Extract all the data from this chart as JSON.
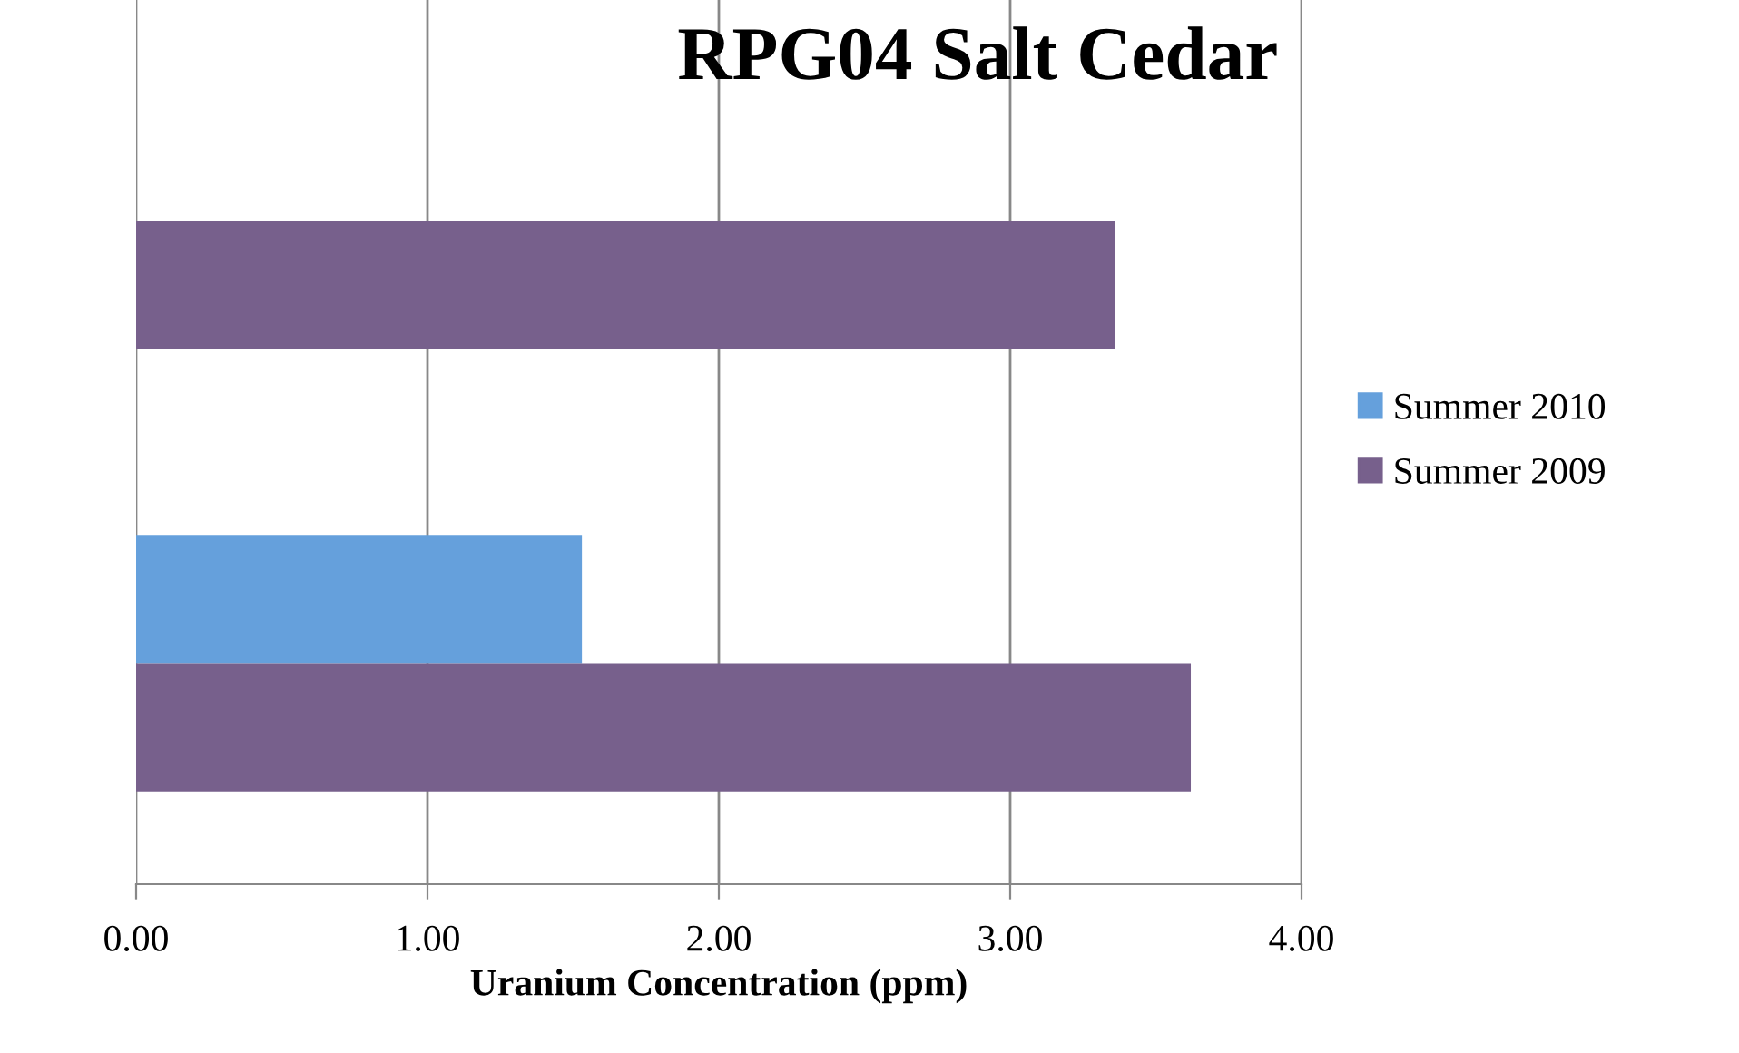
{
  "chart_data": {
    "type": "bar",
    "orientation": "horizontal",
    "title": "RPG04 Salt Cedar",
    "xlabel": "Uranium Concentration (ppm)",
    "categories": [
      null,
      null
    ],
    "series": [
      {
        "name": "Summer 2010",
        "color": "#65a0dc",
        "values": [
          null,
          1.53
        ]
      },
      {
        "name": "Summer 2009",
        "color": "#77608c",
        "values": [
          3.36,
          3.62
        ]
      }
    ],
    "xlim": [
      0,
      4
    ],
    "xticks": [
      {
        "value": 0,
        "label": "0.00"
      },
      {
        "value": 1,
        "label": "1.00"
      },
      {
        "value": 2,
        "label": "2.00"
      },
      {
        "value": 3,
        "label": "3.00"
      },
      {
        "value": 4,
        "label": "4.00"
      }
    ],
    "grid": "x",
    "legend": "right",
    "tick_labels": "x"
  }
}
